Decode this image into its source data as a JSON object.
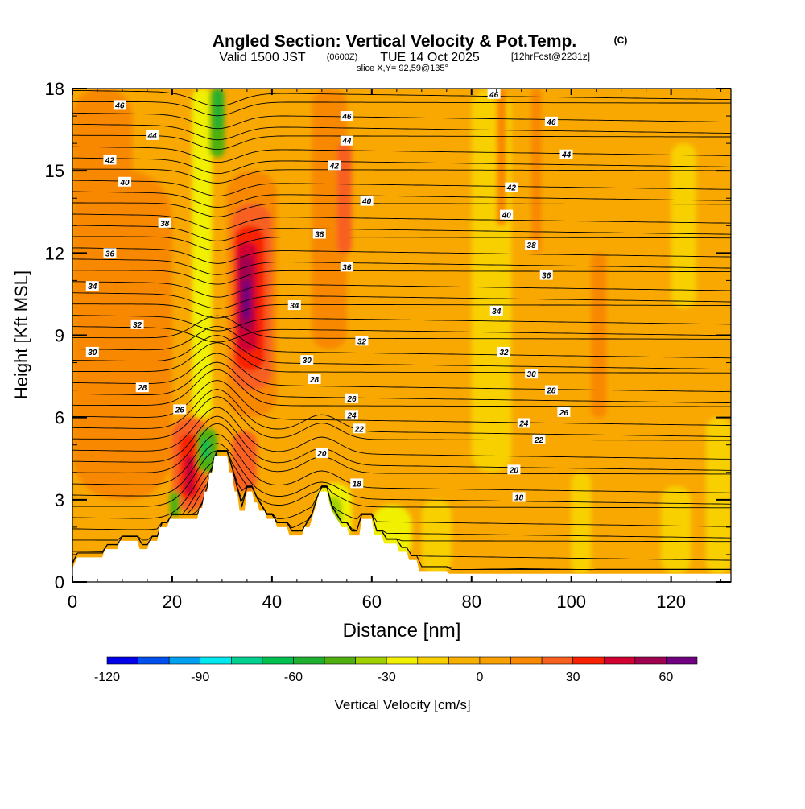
{
  "chart_data": {
    "type": "heatmap",
    "title": {
      "main": "Angled Section: Vertical Velocity & Pot.Temp.",
      "main_suffix": "(C)",
      "sub_a": "Valid 1500 JST",
      "sub_b": "(0600Z)",
      "sub_c": "TUE 14 Oct 2025",
      "sub_d": "[12hrFcst@2231z]",
      "slice": "slice X,Y= 92,59@135°"
    },
    "xlabel": "Distance [nm]",
    "ylabel": "Height [Kft MSL]",
    "xlim": [
      0,
      132
    ],
    "ylim": [
      0,
      18
    ],
    "x_ticks": [
      0,
      20,
      40,
      60,
      80,
      100,
      120
    ],
    "y_ticks": [
      0,
      3,
      6,
      9,
      12,
      15,
      18
    ],
    "colorbar": {
      "label": "Vertical Velocity [cm/s]",
      "ticks": [
        "-120",
        "-90",
        "-60",
        "-30",
        "0",
        "30",
        "60"
      ],
      "levels": [
        -120,
        -110,
        -100,
        -90,
        -80,
        -70,
        -60,
        -50,
        -40,
        -30,
        -20,
        -10,
        0,
        10,
        20,
        30,
        40,
        50,
        60,
        70
      ],
      "colors": [
        "#0000e8",
        "#0050f0",
        "#00a0f0",
        "#00e8f0",
        "#00d090",
        "#00c050",
        "#20b030",
        "#50b010",
        "#a0d000",
        "#f0f000",
        "#f8d000",
        "#f8b000",
        "#f8a000",
        "#f88800",
        "#f86020",
        "#f82000",
        "#d00030",
        "#a00050",
        "#700080"
      ]
    },
    "terrain_kft": [
      [
        0,
        0.5
      ],
      [
        1,
        0.9
      ],
      [
        6,
        0.9
      ],
      [
        6.5,
        1.2
      ],
      [
        9,
        1.2
      ],
      [
        9.5,
        1.5
      ],
      [
        13,
        1.5
      ],
      [
        13.5,
        1.2
      ],
      [
        15,
        1.2
      ],
      [
        15.5,
        1.5
      ],
      [
        17,
        1.5
      ],
      [
        17.5,
        2.0
      ],
      [
        19,
        2.0
      ],
      [
        19.5,
        2.3
      ],
      [
        25,
        2.3
      ],
      [
        25.5,
        2.7
      ],
      [
        26,
        2.7
      ],
      [
        26.5,
        3.3
      ],
      [
        27,
        3.3
      ],
      [
        27.5,
        4.0
      ],
      [
        28,
        4.0
      ],
      [
        28.5,
        4.6
      ],
      [
        31,
        4.6
      ],
      [
        31.5,
        4.0
      ],
      [
        32,
        4.0
      ],
      [
        32.5,
        3.3
      ],
      [
        33,
        3.3
      ],
      [
        33.5,
        2.6
      ],
      [
        34.5,
        2.6
      ],
      [
        35,
        3.3
      ],
      [
        36,
        3.3
      ],
      [
        36.5,
        2.9
      ],
      [
        37,
        2.9
      ],
      [
        37.5,
        2.6
      ],
      [
        38.5,
        2.6
      ],
      [
        39,
        2.3
      ],
      [
        40.5,
        2.3
      ],
      [
        41,
        2.0
      ],
      [
        43,
        2.0
      ],
      [
        43.5,
        1.7
      ],
      [
        46,
        1.7
      ],
      [
        46.5,
        2.0
      ],
      [
        47.5,
        2.0
      ],
      [
        48,
        2.3
      ],
      [
        48.5,
        2.6
      ],
      [
        49,
        2.9
      ],
      [
        49.5,
        3.3
      ],
      [
        51,
        3.3
      ],
      [
        51.5,
        2.9
      ],
      [
        52,
        2.6
      ],
      [
        53,
        2.3
      ],
      [
        54,
        2.0
      ],
      [
        55,
        2.0
      ],
      [
        55.5,
        1.7
      ],
      [
        57.5,
        1.7
      ],
      [
        58,
        2.3
      ],
      [
        60,
        2.3
      ],
      [
        60.5,
        1.7
      ],
      [
        62,
        1.7
      ],
      [
        62.5,
        1.4
      ],
      [
        65,
        1.4
      ],
      [
        65.5,
        1.1
      ],
      [
        67,
        1.1
      ],
      [
        67.5,
        0.8
      ],
      [
        69,
        0.8
      ],
      [
        69.5,
        0.4
      ],
      [
        75,
        0.4
      ],
      [
        75.5,
        0.3
      ],
      [
        132,
        0.3
      ]
    ],
    "theta_contour_labels": [
      {
        "x": 9.5,
        "y": 17.4,
        "text": "46"
      },
      {
        "x": 16,
        "y": 16.3,
        "text": "44"
      },
      {
        "x": 7.5,
        "y": 15.4,
        "text": "42"
      },
      {
        "x": 10.5,
        "y": 14.6,
        "text": "40"
      },
      {
        "x": 18.5,
        "y": 13.1,
        "text": "38"
      },
      {
        "x": 7.5,
        "y": 12.0,
        "text": "36"
      },
      {
        "x": 4,
        "y": 10.8,
        "text": "34"
      },
      {
        "x": 13,
        "y": 9.4,
        "text": "32"
      },
      {
        "x": 4,
        "y": 8.4,
        "text": "30"
      },
      {
        "x": 14,
        "y": 7.1,
        "text": "28"
      },
      {
        "x": 21.5,
        "y": 6.3,
        "text": "26"
      },
      {
        "x": 55,
        "y": 17.0,
        "text": "46"
      },
      {
        "x": 55,
        "y": 16.1,
        "text": "44"
      },
      {
        "x": 52.5,
        "y": 15.2,
        "text": "42"
      },
      {
        "x": 59,
        "y": 13.9,
        "text": "40"
      },
      {
        "x": 49.5,
        "y": 12.7,
        "text": "38"
      },
      {
        "x": 55,
        "y": 11.5,
        "text": "36"
      },
      {
        "x": 44.5,
        "y": 10.1,
        "text": "34"
      },
      {
        "x": 58,
        "y": 8.8,
        "text": "32"
      },
      {
        "x": 47,
        "y": 8.1,
        "text": "30"
      },
      {
        "x": 48.5,
        "y": 7.4,
        "text": "28"
      },
      {
        "x": 56,
        "y": 6.7,
        "text": "26"
      },
      {
        "x": 56,
        "y": 6.1,
        "text": "24"
      },
      {
        "x": 57.5,
        "y": 5.6,
        "text": "22"
      },
      {
        "x": 50,
        "y": 4.7,
        "text": "20"
      },
      {
        "x": 57,
        "y": 3.6,
        "text": "18"
      },
      {
        "x": 84.5,
        "y": 17.8,
        "text": "46"
      },
      {
        "x": 96,
        "y": 16.8,
        "text": "46"
      },
      {
        "x": 99,
        "y": 15.6,
        "text": "44"
      },
      {
        "x": 88,
        "y": 14.4,
        "text": "42"
      },
      {
        "x": 87,
        "y": 13.4,
        "text": "40"
      },
      {
        "x": 92,
        "y": 12.3,
        "text": "38"
      },
      {
        "x": 95,
        "y": 11.2,
        "text": "36"
      },
      {
        "x": 85,
        "y": 9.9,
        "text": "34"
      },
      {
        "x": 86.5,
        "y": 8.4,
        "text": "32"
      },
      {
        "x": 92,
        "y": 7.6,
        "text": "30"
      },
      {
        "x": 96,
        "y": 7.0,
        "text": "28"
      },
      {
        "x": 98.5,
        "y": 6.2,
        "text": "26"
      },
      {
        "x": 90.5,
        "y": 5.8,
        "text": "24"
      },
      {
        "x": 93.5,
        "y": 5.2,
        "text": "22"
      },
      {
        "x": 88.5,
        "y": 4.1,
        "text": "20"
      },
      {
        "x": 89.5,
        "y": 3.1,
        "text": "18"
      }
    ],
    "velocity_cells": [
      {
        "x": [
          0,
          20
        ],
        "y": [
          3,
          15
        ],
        "value": 15
      },
      {
        "x": [
          0,
          12
        ],
        "y": [
          13,
          18
        ],
        "value": 12
      },
      {
        "x": [
          24,
          28
        ],
        "y": [
          6,
          18
        ],
        "value": -22
      },
      {
        "x": [
          27.5,
          30.5
        ],
        "y": [
          15.5,
          18
        ],
        "value": -45
      },
      {
        "x": [
          28.5,
          30
        ],
        "y": [
          16.5,
          18
        ],
        "value": -55
      },
      {
        "x": [
          31,
          41
        ],
        "y": [
          6,
          15
        ],
        "value": 12
      },
      {
        "x": [
          32,
          40
        ],
        "y": [
          7,
          13.8
        ],
        "value": 22
      },
      {
        "x": [
          32.5,
          38.5
        ],
        "y": [
          7.7,
          13
        ],
        "value": 32
      },
      {
        "x": [
          33,
          37
        ],
        "y": [
          8.4,
          12.4
        ],
        "value": 42
      },
      {
        "x": [
          33.5,
          36
        ],
        "y": [
          9.2,
          11.9
        ],
        "value": 52
      },
      {
        "x": [
          34.2,
          35.6
        ],
        "y": [
          9.6,
          11
        ],
        "value": 62
      },
      {
        "x": [
          20,
          27
        ],
        "y": [
          2.6,
          6
        ],
        "value": 20
      },
      {
        "x": [
          21.5,
          25.5
        ],
        "y": [
          3,
          5.4
        ],
        "value": 32
      },
      {
        "x": [
          22.5,
          24.5
        ],
        "y": [
          3.2,
          4.6
        ],
        "value": 44
      },
      {
        "x": [
          19.5,
          21.5
        ],
        "y": [
          2.4,
          3.3
        ],
        "value": -45
      },
      {
        "x": [
          25,
          29
        ],
        "y": [
          4,
          5.6
        ],
        "value": -50
      },
      {
        "x": [
          26,
          27.5
        ],
        "y": [
          4.5,
          5.2
        ],
        "value": -65
      },
      {
        "x": [
          32,
          37
        ],
        "y": [
          3.3,
          5.5
        ],
        "value": 22
      },
      {
        "x": [
          49,
          56
        ],
        "y": [
          1.5,
          3.6
        ],
        "value": -25
      },
      {
        "x": [
          50.5,
          54
        ],
        "y": [
          2,
          3.1
        ],
        "value": -32
      },
      {
        "x": [
          60,
          68
        ],
        "y": [
          0.8,
          2.8
        ],
        "value": -25
      },
      {
        "x": [
          48,
          55
        ],
        "y": [
          8.5,
          18
        ],
        "value": 15
      },
      {
        "x": [
          53,
          56
        ],
        "y": [
          12,
          16
        ],
        "value": 20
      },
      {
        "x": [
          80,
          88
        ],
        "y": [
          4,
          18
        ],
        "value": -12
      },
      {
        "x": [
          85,
          87
        ],
        "y": [
          13,
          18
        ],
        "value": 10
      },
      {
        "x": [
          92,
          94
        ],
        "y": [
          12,
          18
        ],
        "value": 12
      },
      {
        "x": [
          104,
          107
        ],
        "y": [
          6,
          12
        ],
        "value": 12
      },
      {
        "x": [
          100,
          104
        ],
        "y": [
          0.3,
          4
        ],
        "value": -15
      },
      {
        "x": [
          118,
          124
        ],
        "y": [
          0.3,
          3.5
        ],
        "value": -15
      },
      {
        "x": [
          127,
          132
        ],
        "y": [
          0.3,
          6
        ],
        "value": -15
      },
      {
        "x": [
          70,
          76
        ],
        "y": [
          0.3,
          3
        ],
        "value": -12
      },
      {
        "x": [
          120,
          125
        ],
        "y": [
          10,
          16
        ],
        "value": -12
      }
    ]
  }
}
